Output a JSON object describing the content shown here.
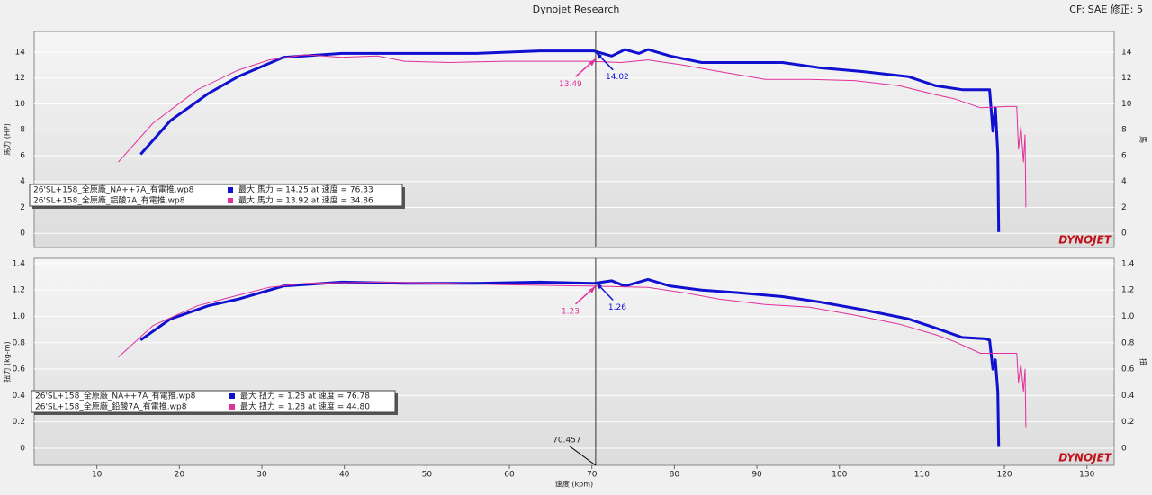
{
  "header": {
    "title": "Dynojet Research",
    "cf": "CF: SAE 修正: 5"
  },
  "chart_data": [
    {
      "type": "line",
      "ylabel": "馬力 (HP)",
      "y2label": "馬",
      "logo": "DYNOJET",
      "legend": "lower left",
      "grid": true,
      "xlim": [
        2.4,
        133.3
      ],
      "ylim": [
        -1.1,
        15.6
      ],
      "yticks": [
        0,
        2,
        4,
        6,
        8,
        10,
        12,
        14
      ],
      "cursor": 70.457,
      "series": [
        {
          "name": "26'SL+158_全原廠_NA++7A_有電推.wp8",
          "max": "最大 馬力 = 14.25 at 速度 = 76.33",
          "color": "#1010d0",
          "width": 3,
          "x": [
            15.3,
            18.9,
            23.5,
            27.1,
            32.6,
            39.7,
            47.3,
            56,
            63.7,
            70.2,
            72.4,
            74,
            75.7,
            76.8,
            79.5,
            83.3,
            87.7,
            93.1,
            97.5,
            102.9,
            108.4,
            111.7,
            114.9,
            117.7,
            118.2,
            118.6,
            118.9,
            119.2,
            119.3
          ],
          "values": [
            6.1,
            8.7,
            10.8,
            12.1,
            13.6,
            13.9,
            13.9,
            13.9,
            14.1,
            14.1,
            13.7,
            14.2,
            13.9,
            14.2,
            13.7,
            13.2,
            13.2,
            13.2,
            12.8,
            12.5,
            12.1,
            11.4,
            11.1,
            11.1,
            11.1,
            7.9,
            9.7,
            6.2,
            0.1
          ]
        },
        {
          "name": "26'SL+158_全原廠_鋁酸7A_有電推.wp8",
          "max": "最大 馬力 = 13.92 at 速度 = 34.86",
          "color": "#e0309a",
          "width": 1,
          "x": [
            12.6,
            16.8,
            22.2,
            27.1,
            30.9,
            35.3,
            39.7,
            44,
            47.3,
            52.8,
            59.3,
            65.9,
            69.7,
            73.5,
            76.8,
            81.1,
            85.5,
            91,
            96.4,
            101.8,
            107.3,
            111.7,
            113.9,
            117.1,
            120.4,
            121.5,
            121.7,
            122,
            122.3,
            122.5,
            122.6
          ],
          "values": [
            5.5,
            8.5,
            11.1,
            12.6,
            13.4,
            13.8,
            13.6,
            13.7,
            13.3,
            13.2,
            13.3,
            13.3,
            13.3,
            13.2,
            13.4,
            13,
            12.5,
            11.9,
            11.9,
            11.8,
            11.4,
            10.7,
            10.4,
            9.7,
            9.8,
            9.8,
            6.5,
            8.3,
            5.5,
            7.6,
            2
          ]
        }
      ],
      "markers": [
        {
          "x": 70.457,
          "y": 13.49,
          "color": "#e0309a"
        },
        {
          "x": 70.457,
          "y": 14.02,
          "color": "#1010d0"
        }
      ]
    },
    {
      "type": "line",
      "ylabel": "扭力 (kg-m)",
      "y2label": "扭",
      "xlabel": "速度 (kpm)",
      "logo": "DYNOJET",
      "legend": "lower left",
      "grid": true,
      "xlim": [
        2.4,
        133.3
      ],
      "ylim": [
        -0.13,
        1.44
      ],
      "xticks": [
        10,
        20,
        30,
        40,
        50,
        60,
        70,
        80,
        90,
        100,
        110,
        120,
        130
      ],
      "yticks": [
        0,
        0.2,
        0.4,
        0.6,
        0.8,
        {
          "value": 1,
          "label": "1.0"
        },
        1.2,
        1.4
      ],
      "cursor": 70.457,
      "series": [
        {
          "name": "26'SL+158_全原廠_NA++7A_有電推.wp8",
          "max": "最大 扭力 = 1.28 at 速度 = 76.78",
          "color": "#1010d0",
          "width": 3,
          "x": [
            15.3,
            18.9,
            23.5,
            27.1,
            32.6,
            39.7,
            47.3,
            56,
            63.7,
            70.2,
            72.4,
            74,
            76.8,
            79.5,
            83.3,
            87.7,
            93.1,
            97.5,
            102.9,
            108.4,
            111.7,
            114.9,
            117.7,
            118.2,
            118.6,
            118.9,
            119.2,
            119.3
          ],
          "values": [
            0.82,
            0.98,
            1.08,
            1.13,
            1.23,
            1.26,
            1.25,
            1.25,
            1.26,
            1.25,
            1.27,
            1.23,
            1.28,
            1.23,
            1.2,
            1.18,
            1.15,
            1.11,
            1.05,
            0.98,
            0.91,
            0.84,
            0.83,
            0.82,
            0.6,
            0.67,
            0.43,
            0.01
          ]
        },
        {
          "name": "26'SL+158_全原廠_鉛酸7A_有電推.wp8",
          "max": "最大 扭力 = 1.28 at 速度 = 44.80",
          "color": "#e0309a",
          "width": 1,
          "x": [
            12.6,
            16.8,
            22.2,
            27.1,
            30.9,
            35.3,
            44,
            52.8,
            59.3,
            69.7,
            76.8,
            81.1,
            85.5,
            91,
            96.4,
            101.8,
            107.3,
            111.7,
            113.9,
            117.1,
            120.4,
            121.5,
            121.7,
            122,
            122.3,
            122.5,
            122.6
          ],
          "values": [
            0.69,
            0.93,
            1.08,
            1.16,
            1.22,
            1.25,
            1.26,
            1.25,
            1.24,
            1.23,
            1.22,
            1.18,
            1.13,
            1.09,
            1.07,
            1.01,
            0.94,
            0.86,
            0.81,
            0.72,
            0.72,
            0.72,
            0.5,
            0.64,
            0.43,
            0.6,
            0.16
          ]
        }
      ],
      "markers": [
        {
          "x": 70.457,
          "y": 1.23,
          "color": "#e0309a"
        },
        {
          "x": 70.457,
          "y": 1.26,
          "color": "#1010d0"
        }
      ]
    }
  ]
}
